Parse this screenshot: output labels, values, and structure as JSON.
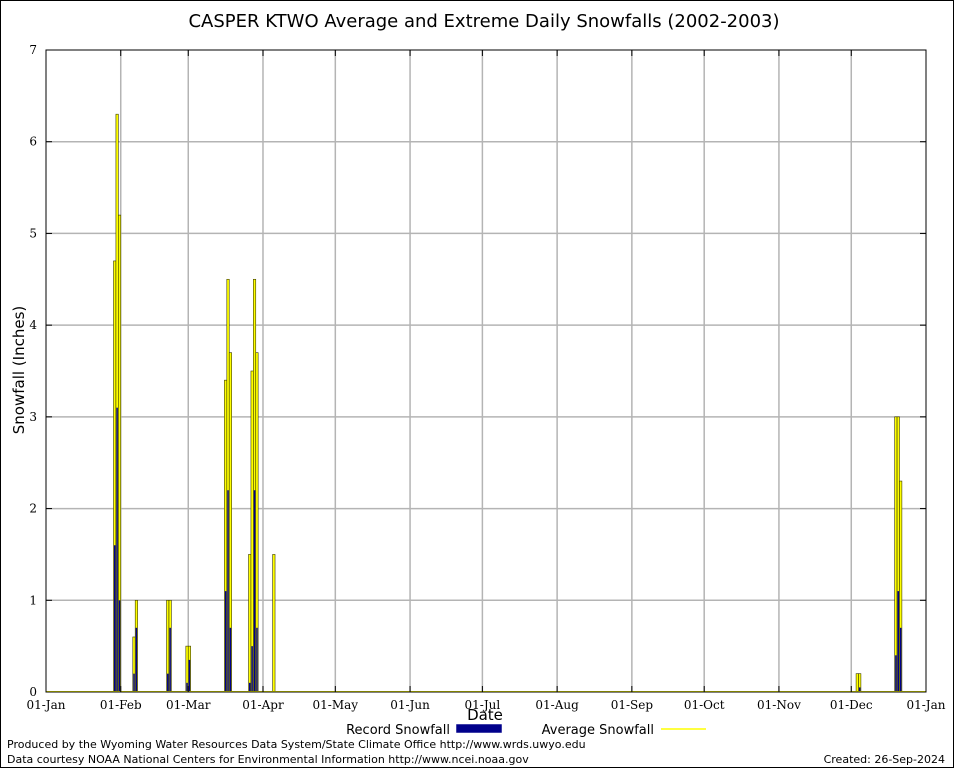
{
  "chart_data": {
    "type": "bar",
    "title": "CASPER KTWO Average and Extreme Daily Snowfalls (2002-2003)",
    "xlabel": "Date",
    "ylabel": "Snowfall (Inches)",
    "x_axis": "day of year, 2002-01-01 to 2003-01-01",
    "ylim": [
      0,
      7
    ],
    "yticks": [
      "0",
      "1",
      "2",
      "3",
      "4",
      "5",
      "6",
      "7"
    ],
    "xticks": [
      "01-Jan",
      "01-Feb",
      "01-Mar",
      "01-Apr",
      "01-May",
      "01-Jun",
      "01-Jul",
      "01-Aug",
      "01-Sep",
      "01-Oct",
      "01-Nov",
      "01-Dec",
      "01-Jan"
    ],
    "xtick_dates": [
      "2002-01-01",
      "2002-02-01",
      "2002-03-01",
      "2002-04-01",
      "2002-05-01",
      "2002-06-01",
      "2002-07-01",
      "2002-08-01",
      "2002-09-01",
      "2002-10-01",
      "2002-11-01",
      "2002-12-01",
      "2003-01-01"
    ],
    "grid": true,
    "legend_placement": "bottom",
    "series": [
      {
        "name": "Record Snowfall",
        "color": "#00008b",
        "points": [
          {
            "date": "2002-01-29",
            "value": 1.6
          },
          {
            "date": "2002-01-30",
            "value": 3.1
          },
          {
            "date": "2002-01-31",
            "value": 1.0
          },
          {
            "date": "2002-02-06",
            "value": 0.2
          },
          {
            "date": "2002-02-07",
            "value": 0.7
          },
          {
            "date": "2002-02-20",
            "value": 0.2
          },
          {
            "date": "2002-02-21",
            "value": 0.7
          },
          {
            "date": "2002-02-28",
            "value": 0.1
          },
          {
            "date": "2002-03-01",
            "value": 0.35
          },
          {
            "date": "2002-03-16",
            "value": 1.1
          },
          {
            "date": "2002-03-17",
            "value": 2.2
          },
          {
            "date": "2002-03-18",
            "value": 0.7
          },
          {
            "date": "2002-03-26",
            "value": 0.1
          },
          {
            "date": "2002-03-27",
            "value": 0.5
          },
          {
            "date": "2002-03-28",
            "value": 2.2
          },
          {
            "date": "2002-03-29",
            "value": 0.7
          },
          {
            "date": "2002-12-04",
            "value": 0.05
          },
          {
            "date": "2002-12-19",
            "value": 0.4
          },
          {
            "date": "2002-12-20",
            "value": 1.1
          },
          {
            "date": "2002-12-21",
            "value": 0.7
          }
        ]
      },
      {
        "name": "Average Snowfall",
        "color": "#ffff00",
        "points": [
          {
            "date": "2002-01-29",
            "value": 4.7
          },
          {
            "date": "2002-01-30",
            "value": 6.3
          },
          {
            "date": "2002-01-31",
            "value": 5.2
          },
          {
            "date": "2002-02-06",
            "value": 0.6
          },
          {
            "date": "2002-02-07",
            "value": 1.0
          },
          {
            "date": "2002-02-20",
            "value": 1.0
          },
          {
            "date": "2002-02-21",
            "value": 1.0
          },
          {
            "date": "2002-02-28",
            "value": 0.5
          },
          {
            "date": "2002-03-01",
            "value": 0.5
          },
          {
            "date": "2002-03-16",
            "value": 3.4
          },
          {
            "date": "2002-03-17",
            "value": 4.5
          },
          {
            "date": "2002-03-18",
            "value": 3.7
          },
          {
            "date": "2002-03-26",
            "value": 1.5
          },
          {
            "date": "2002-03-27",
            "value": 3.5
          },
          {
            "date": "2002-03-28",
            "value": 4.5
          },
          {
            "date": "2002-03-29",
            "value": 3.7
          },
          {
            "date": "2002-04-05",
            "value": 1.5
          },
          {
            "date": "2002-12-03",
            "value": 0.2
          },
          {
            "date": "2002-12-04",
            "value": 0.2
          },
          {
            "date": "2002-12-19",
            "value": 3.0
          },
          {
            "date": "2002-12-20",
            "value": 3.0
          },
          {
            "date": "2002-12-21",
            "value": 2.3
          }
        ]
      }
    ]
  },
  "footer": {
    "produced_by": "Produced by the Wyoming Water Resources Data System/State Climate Office http://www.wrds.uwyo.edu",
    "data_courtesy": "Data courtesy NOAA National Centers for Environmental Information http://www.ncei.noaa.gov",
    "created": "Created:  26-Sep-2024"
  }
}
